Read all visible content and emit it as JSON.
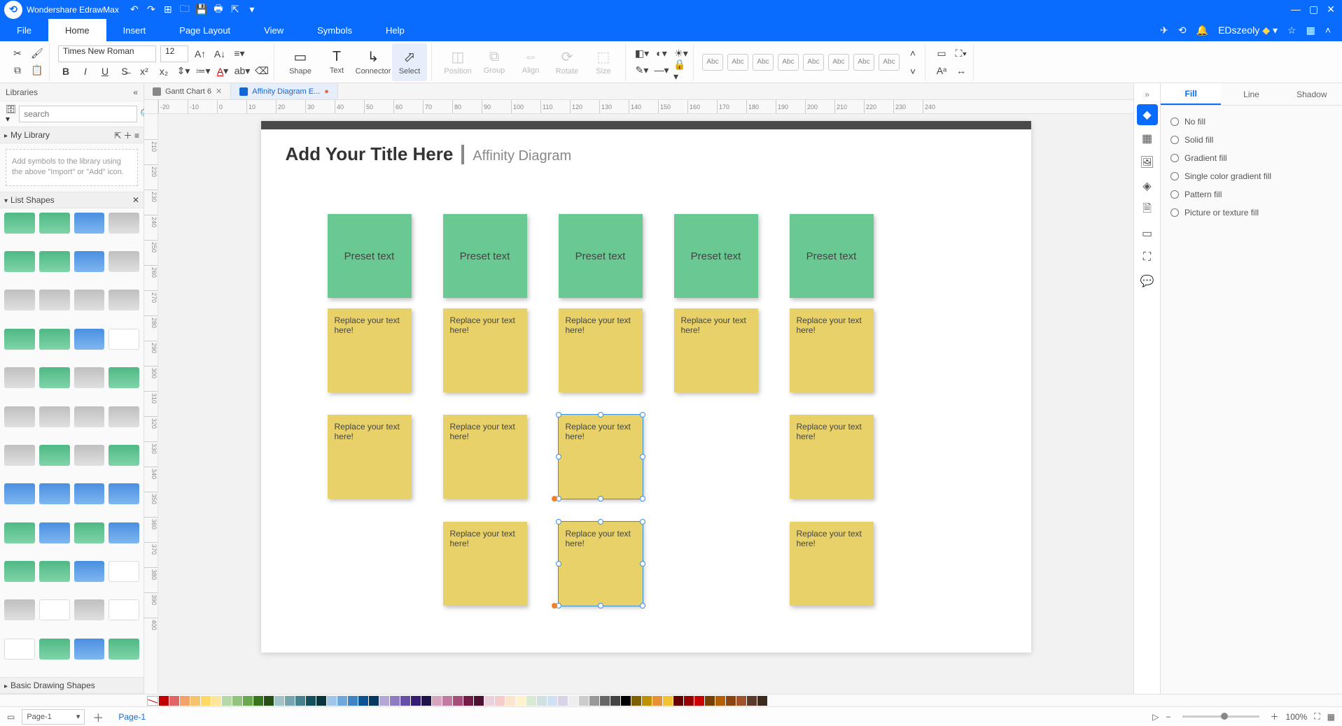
{
  "app": {
    "name": "Wondershare EdrawMax"
  },
  "menu": {
    "tabs": [
      "File",
      "Home",
      "Insert",
      "Page Layout",
      "View",
      "Symbols",
      "Help"
    ],
    "active": 1,
    "user": "EDszeoly"
  },
  "ribbon": {
    "font": "Times New Roman",
    "size": "12",
    "tools": {
      "shape": "Shape",
      "text": "Text",
      "connector": "Connector",
      "select": "Select"
    },
    "disabled": {
      "position": "Position",
      "group": "Group",
      "align": "Align",
      "rotate": "Rotate",
      "size": "Size"
    },
    "styleThumb": "Abc"
  },
  "libraries": {
    "title": "Libraries",
    "searchPlaceholder": "search",
    "myLibrary": "My Library",
    "importHint": "Add symbols to the library using the above \"Import\" or \"Add\" icon.",
    "listShapes": "List Shapes",
    "basicShapes": "Basic Drawing Shapes"
  },
  "docTabs": [
    {
      "label": "Gantt Chart 6",
      "active": false,
      "modified": false
    },
    {
      "label": "Affinity Diagram E...",
      "active": true,
      "modified": true
    }
  ],
  "canvas": {
    "title": "Add Your Title Here",
    "subtitle": "Affinity Diagram",
    "headerColor": "#6ac893",
    "noteColor": "#e7d168",
    "presetText": "Preset text",
    "replaceText": "Replace your text here!",
    "columns": [
      95,
      260,
      425,
      590,
      755
    ],
    "rows": {
      "header": 60,
      "r1": 195,
      "r2": 347,
      "r3": 500
    },
    "layout": {
      "row1": [
        0,
        1,
        2,
        3,
        4
      ],
      "row2": [
        0,
        1,
        2,
        4
      ],
      "row2Selected": 2,
      "row3": [
        1,
        2,
        4
      ],
      "row3Selected": 2
    }
  },
  "rightPanel": {
    "tabs": [
      "Fill",
      "Line",
      "Shadow"
    ],
    "active": 0,
    "options": [
      "No fill",
      "Solid fill",
      "Gradient fill",
      "Single color gradient fill",
      "Pattern fill",
      "Picture or texture fill"
    ]
  },
  "colorSwatches": [
    "#c00000",
    "#e06666",
    "#f4a16a",
    "#f6c26b",
    "#ffd966",
    "#ffe599",
    "#b6d7a8",
    "#93c47d",
    "#6aa84f",
    "#38761d",
    "#274e13",
    "#a2c4c9",
    "#76a5af",
    "#45818e",
    "#134f5c",
    "#0c343d",
    "#9fc5e8",
    "#6fa8dc",
    "#3d85c6",
    "#0b5394",
    "#073763",
    "#b4a7d6",
    "#8e7cc3",
    "#674ea7",
    "#351c75",
    "#20124d",
    "#d5a6bd",
    "#c27ba0",
    "#a64d79",
    "#741b47",
    "#4c1130",
    "#ead1dc",
    "#f4cccc",
    "#fce5cd",
    "#fff2cc",
    "#d9ead3",
    "#d0e0e3",
    "#cfe2f3",
    "#d9d2e9",
    "#eeeeee",
    "#cccccc",
    "#999999",
    "#666666",
    "#434343",
    "#000000",
    "#7f6000",
    "#bf9000",
    "#e69138",
    "#f1c232",
    "#660000",
    "#990000",
    "#cc0000",
    "#783f04",
    "#b45f06",
    "#8b4513",
    "#a0522d",
    "#5b3a29",
    "#3e2b1f"
  ],
  "status": {
    "pageSel": "Page-1",
    "page": "Page-1",
    "zoom": "100%"
  }
}
